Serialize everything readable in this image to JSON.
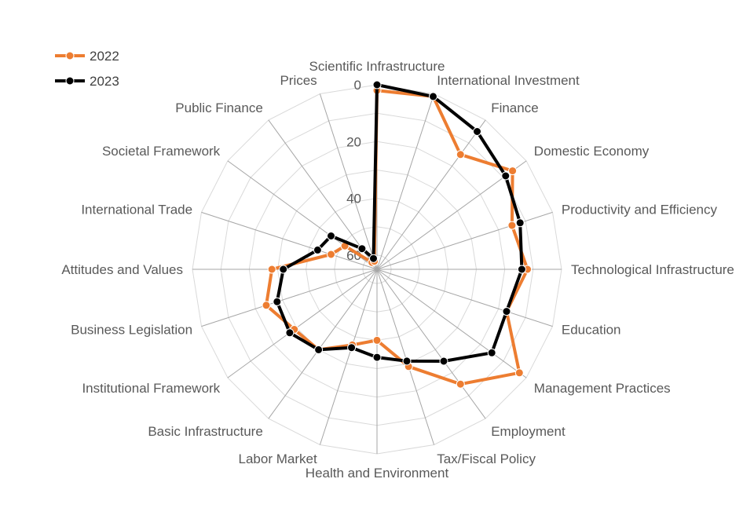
{
  "chart_data": {
    "type": "radar",
    "title": "",
    "categories": [
      "Scientific Infrastructure",
      "International Investment",
      "Finance",
      "Domestic Economy",
      "Productivity and Efficiency",
      "Technological Infrastructure",
      "Education",
      "Management Practices",
      "Employment",
      "Tax/Fiscal Policy",
      "Health and Environment",
      "Labor Market",
      "Basic Infrastructure",
      "Institutional Framework",
      "Business Legislation",
      "Attitudes and Values",
      "International Trade",
      "Societal Framework",
      "Public Finance",
      "Prices"
    ],
    "radial_axis": {
      "reversed": true,
      "min": 0,
      "max": 65,
      "ticks": [
        0,
        20,
        40,
        60
      ],
      "tick_labels": [
        "0",
        "20",
        "40",
        "60"
      ]
    },
    "series": [
      {
        "name": "2022",
        "color": "#ed7d31",
        "values": [
          2,
          1,
          15,
          6,
          15,
          12,
          17,
          3,
          15,
          29,
          40,
          37,
          30,
          29,
          24,
          28,
          48,
          51,
          62,
          62
        ]
      },
      {
        "name": "2023",
        "color": "#000000",
        "values": [
          0,
          1,
          5,
          9,
          12,
          14,
          17,
          15,
          25,
          31,
          34,
          36,
          30,
          27,
          28,
          32,
          43,
          45,
          56,
          61
        ]
      }
    ],
    "legend": {
      "position": "top-left",
      "entries": [
        "2022",
        "2023"
      ]
    },
    "grid": true
  }
}
